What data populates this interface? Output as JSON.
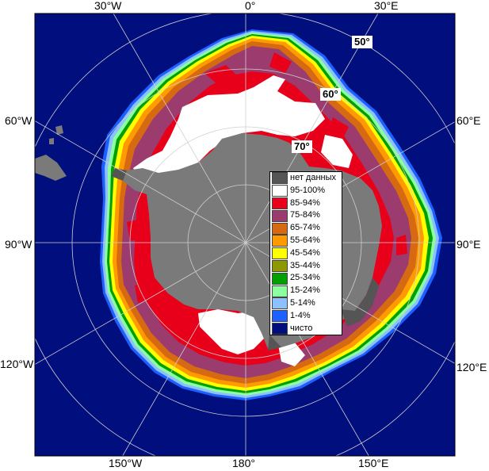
{
  "map": {
    "longitude_labels": {
      "top_left": "30°W",
      "top_center": "0°",
      "top_right": "30°E",
      "left_upper": "60°W",
      "right_upper": "60°E",
      "left_middle": "90°W",
      "right_middle": "90°E",
      "left_lower": "120°W",
      "right_lower": "120°E",
      "bottom_left": "150°W",
      "bottom_center": "180°",
      "bottom_right": "150°E"
    },
    "latitude_labels": {
      "lat50": "50°",
      "lat60": "60°",
      "lat70": "70°"
    },
    "colors": {
      "ocean_clear": "#000e7e",
      "land": "#7a7a7a",
      "no_data": "#555555",
      "ice_95_100": "#ffffff",
      "ice_85_94": "#e8001a",
      "ice_75_84": "#9b3b6e",
      "ice_65_74": "#d56a12",
      "ice_55_64": "#ff9a00",
      "ice_45_54": "#ffff00",
      "ice_35_44": "#8c9a00",
      "ice_25_34": "#00a000",
      "ice_15_24": "#8cffa0",
      "ice_5_14": "#8cc0ff",
      "ice_1_4": "#1e60ff",
      "grid": "#cfcfcf"
    }
  },
  "legend": {
    "items": [
      {
        "label": "нет данных",
        "color": "#555555"
      },
      {
        "label": "95-100%",
        "color": "#ffffff"
      },
      {
        "label": "85-94%",
        "color": "#e8001a"
      },
      {
        "label": "75-84%",
        "color": "#9b3b6e"
      },
      {
        "label": "65-74%",
        "color": "#d56a12"
      },
      {
        "label": "55-64%",
        "color": "#ff9a00"
      },
      {
        "label": "45-54%",
        "color": "#ffff00"
      },
      {
        "label": "35-44%",
        "color": "#8c9a00"
      },
      {
        "label": "25-34%",
        "color": "#00a000"
      },
      {
        "label": "15-24%",
        "color": "#8cffa0"
      },
      {
        "label": "5-14%",
        "color": "#8cc0ff"
      },
      {
        "label": "1-4%",
        "color": "#1e60ff"
      },
      {
        "label": "чисто",
        "color": "#000e7e"
      }
    ]
  }
}
